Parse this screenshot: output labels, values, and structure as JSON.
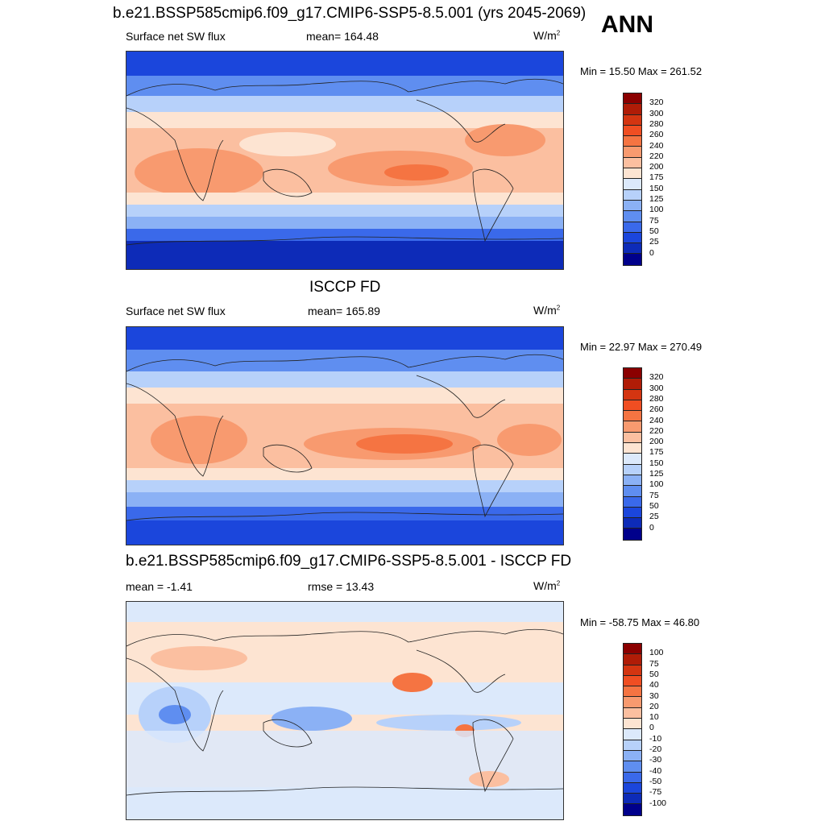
{
  "header": {
    "title": "b.e21.BSSP585cmip6.f09_g17.CMIP6-SSP5-8.5.001 (yrs 2045-2069)",
    "season": "ANN"
  },
  "panels": [
    {
      "title": "",
      "left_label": "Surface net SW flux",
      "center_label": "mean= 164.48",
      "units": "W/m",
      "units_sup": "2",
      "minmax": "Min =  15.50 Max = 261.52"
    },
    {
      "title": "ISCCP FD",
      "left_label": "Surface net SW flux",
      "center_label": "mean= 165.89",
      "units": "W/m",
      "units_sup": "2",
      "minmax": "Min =  22.97 Max = 270.49"
    },
    {
      "title": "b.e21.BSSP585cmip6.f09_g17.CMIP6-SSP5-8.5.001 - ISCCP FD",
      "left_label": "mean =  -1.41",
      "center_label": "rmse =  13.43",
      "units": "W/m",
      "units_sup": "2",
      "minmax": "Min = -58.75 Max =  46.80"
    }
  ],
  "colorbars": {
    "field": {
      "labels": [
        "320",
        "300",
        "280",
        "260",
        "240",
        "220",
        "200",
        "175",
        "150",
        "125",
        "100",
        "75",
        "50",
        "25",
        "0"
      ],
      "colors": [
        "#8b0000",
        "#b01c07",
        "#d43511",
        "#f04e22",
        "#f57442",
        "#f89a6f",
        "#fbbfa0",
        "#fde4d2",
        "#dce9fb",
        "#b7d1fa",
        "#8bb1f5",
        "#5f8ef0",
        "#3a69ea",
        "#1b46dc",
        "#0d2bb8",
        "#00008b"
      ]
    },
    "diff": {
      "labels": [
        "100",
        "75",
        "50",
        "40",
        "30",
        "20",
        "10",
        "0",
        "-10",
        "-20",
        "-30",
        "-40",
        "-50",
        "-75",
        "-100"
      ],
      "colors": [
        "#8b0000",
        "#b01c07",
        "#d43511",
        "#f04e22",
        "#f57442",
        "#f89a6f",
        "#fbbfa0",
        "#fde4d2",
        "#dce9fb",
        "#b7d1fa",
        "#8bb1f5",
        "#5f8ef0",
        "#3a69ea",
        "#1b46dc",
        "#0d2bb8",
        "#00008b"
      ]
    }
  }
}
